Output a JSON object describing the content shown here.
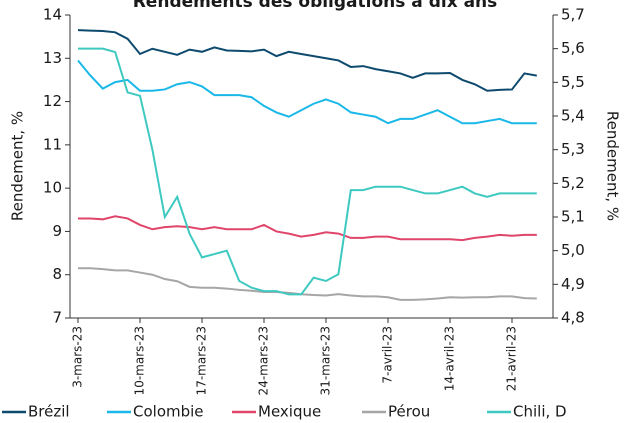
{
  "chart_data": {
    "type": "line",
    "title": "Rendements des obligations à dix ans",
    "y_label": "Rendement, %",
    "y2_label": "Rendement, %",
    "categories": [
      "3-mars-23",
      null,
      null,
      null,
      null,
      "10-mars-23",
      null,
      null,
      null,
      null,
      "17-mars-23",
      null,
      null,
      null,
      null,
      "24-mars-23",
      null,
      null,
      null,
      null,
      "31-mars-23",
      null,
      null,
      null,
      null,
      "7-avril-23",
      null,
      null,
      null,
      null,
      "14-avril-23",
      null,
      null,
      null,
      null,
      "21-avril-23",
      null,
      null
    ],
    "ylim": [
      7,
      14
    ],
    "yticks": [
      7,
      8,
      9,
      10,
      11,
      12,
      13,
      14
    ],
    "y2lim": [
      4.8,
      5.7
    ],
    "y2ticks": [
      {
        "value": 4.8,
        "label": "4,8"
      },
      {
        "value": 4.9,
        "label": "4,9"
      },
      {
        "value": 5.0,
        "label": "5,0"
      },
      {
        "value": 5.1,
        "label": "5,1"
      },
      {
        "value": 5.2,
        "label": "5,2"
      },
      {
        "value": 5.3,
        "label": "5,3"
      },
      {
        "value": 5.4,
        "label": "5,4"
      },
      {
        "value": 5.5,
        "label": "5,5"
      },
      {
        "value": 5.6,
        "label": "5,6"
      },
      {
        "value": 5.7,
        "label": "5,7"
      }
    ],
    "series": [
      {
        "name": "Brézil",
        "color": "#0d4a6e",
        "values": [
          13.65,
          13.64,
          13.63,
          13.6,
          13.45,
          13.1,
          13.22,
          13.15,
          13.08,
          13.2,
          13.15,
          13.25,
          13.18,
          13.17,
          13.16,
          13.2,
          13.05,
          13.15,
          13.1,
          13.05,
          13.0,
          12.95,
          12.8,
          12.82,
          12.75,
          12.7,
          12.65,
          12.55,
          12.65,
          12.65,
          12.66,
          12.5,
          12.4,
          12.25,
          12.27,
          12.28,
          12.65,
          12.6
        ]
      },
      {
        "name": "Colombie",
        "color": "#1ab8e8",
        "values": [
          12.95,
          12.6,
          12.3,
          12.45,
          12.5,
          12.25,
          12.25,
          12.28,
          12.4,
          12.45,
          12.35,
          12.15,
          12.15,
          12.15,
          12.1,
          11.9,
          11.75,
          11.65,
          11.8,
          11.95,
          12.05,
          11.95,
          11.75,
          11.7,
          11.65,
          11.5,
          11.6,
          11.6,
          11.7,
          11.8,
          11.65,
          11.5,
          11.5,
          11.55,
          11.6,
          11.5,
          11.5,
          11.5
        ]
      },
      {
        "name": "Mexique",
        "color": "#e0456a",
        "values": [
          9.3,
          9.3,
          9.28,
          9.35,
          9.3,
          9.15,
          9.05,
          9.1,
          9.12,
          9.1,
          9.05,
          9.1,
          9.05,
          9.05,
          9.05,
          9.15,
          9.0,
          8.95,
          8.88,
          8.92,
          8.98,
          8.95,
          8.85,
          8.85,
          8.88,
          8.88,
          8.82,
          8.82,
          8.82,
          8.82,
          8.82,
          8.8,
          8.85,
          8.88,
          8.92,
          8.9,
          8.92,
          8.92
        ]
      },
      {
        "name": "Pérou",
        "color": "#a6a6a6",
        "values": [
          8.15,
          8.15,
          8.13,
          8.1,
          8.1,
          8.05,
          8.0,
          7.9,
          7.85,
          7.72,
          7.7,
          7.7,
          7.68,
          7.65,
          7.63,
          7.6,
          7.6,
          7.58,
          7.55,
          7.53,
          7.52,
          7.55,
          7.52,
          7.5,
          7.5,
          7.48,
          7.42,
          7.42,
          7.43,
          7.45,
          7.48,
          7.47,
          7.48,
          7.48,
          7.5,
          7.5,
          7.46,
          7.45
        ]
      },
      {
        "name": "Chili, D",
        "color": "#3ec9c0",
        "axis": "y2",
        "values": [
          5.6,
          5.6,
          5.6,
          5.59,
          5.47,
          5.46,
          5.3,
          5.1,
          5.16,
          5.05,
          4.98,
          4.99,
          5.0,
          4.91,
          4.89,
          4.88,
          4.88,
          4.87,
          4.87,
          4.92,
          4.91,
          4.93,
          5.18,
          5.18,
          5.19,
          5.19,
          5.19,
          5.18,
          5.17,
          5.17,
          5.18,
          5.19,
          5.17,
          5.16,
          5.17,
          5.17,
          5.17,
          5.17
        ]
      }
    ]
  }
}
